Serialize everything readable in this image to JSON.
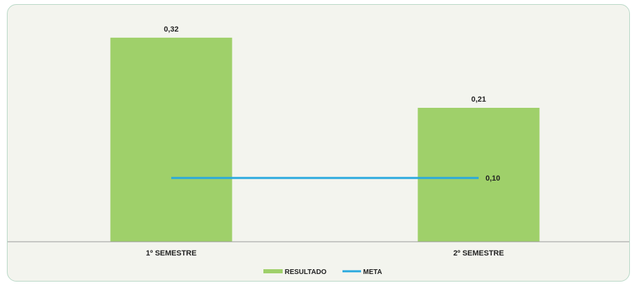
{
  "chart_data": {
    "type": "bar",
    "categories": [
      "1º SEMESTRE",
      "2º SEMESTRE"
    ],
    "series": [
      {
        "name": "RESULTADO",
        "type": "bar",
        "values": [
          0.32,
          0.21
        ],
        "labels": [
          "0,32",
          "0,21"
        ]
      },
      {
        "name": "META",
        "type": "line",
        "values": [
          0.1,
          0.1
        ],
        "labels": [
          "",
          "0,10"
        ]
      }
    ],
    "ylim": [
      0,
      0.35
    ],
    "title": "",
    "xlabel": "",
    "ylabel": "",
    "grid": false,
    "legend_position": "bottom",
    "colors": {
      "bar": "#9fd06a",
      "line": "#29a9de",
      "axis": "#9a9a9a"
    }
  }
}
